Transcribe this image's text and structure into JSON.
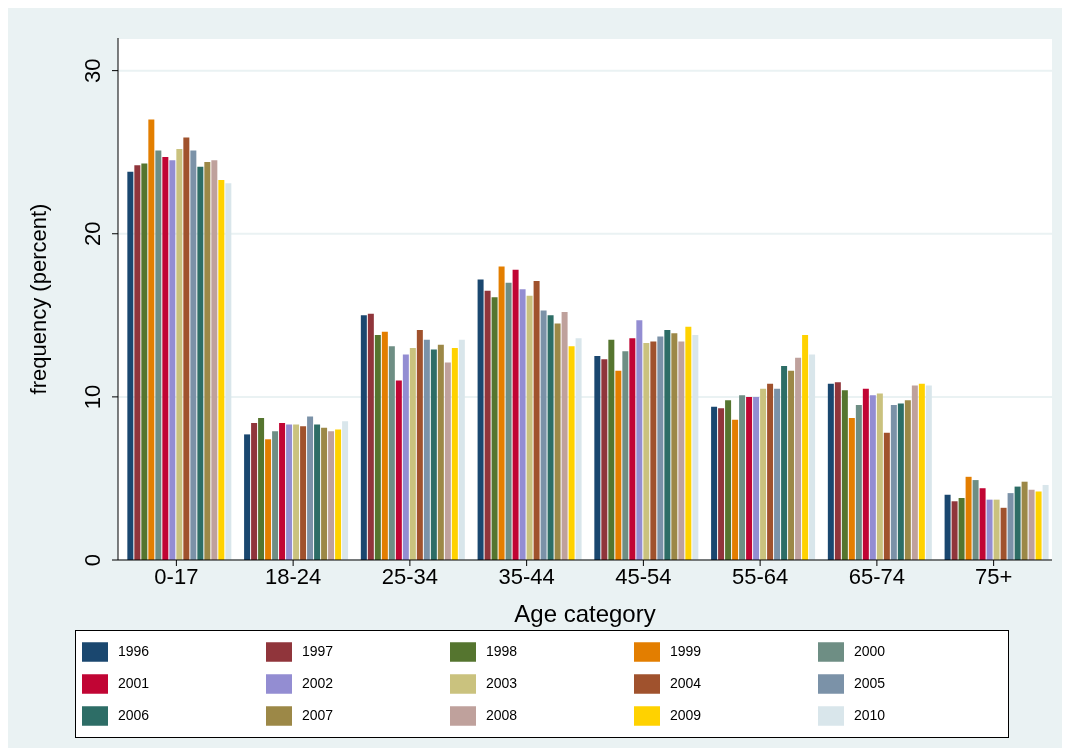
{
  "chart_data": {
    "type": "bar",
    "xlabel": "Age category",
    "ylabel": "frequency (percent)",
    "categories": [
      "0-17",
      "18-24",
      "25-34",
      "35-44",
      "45-54",
      "55-64",
      "65-74",
      "75+"
    ],
    "ylim": [
      0,
      32
    ],
    "yticks": [
      0,
      10,
      20,
      30
    ],
    "grid": "y",
    "legend": "bottom",
    "series": [
      {
        "name": "1996",
        "color": "#1a476f",
        "values": [
          23.8,
          7.7,
          15.0,
          17.2,
          12.5,
          9.4,
          10.8,
          4.0
        ]
      },
      {
        "name": "1997",
        "color": "#90353b",
        "values": [
          24.2,
          8.4,
          15.1,
          16.5,
          12.3,
          9.3,
          10.9,
          3.6
        ]
      },
      {
        "name": "1998",
        "color": "#55752f",
        "values": [
          24.3,
          8.7,
          13.8,
          16.1,
          13.5,
          9.8,
          10.4,
          3.8
        ]
      },
      {
        "name": "1999",
        "color": "#e37e00",
        "values": [
          27.0,
          7.4,
          14.0,
          18.0,
          11.6,
          8.6,
          8.7,
          5.1
        ]
      },
      {
        "name": "2000",
        "color": "#6e8e84",
        "values": [
          25.1,
          7.9,
          13.1,
          17.0,
          12.8,
          10.1,
          9.5,
          4.9
        ]
      },
      {
        "name": "2001",
        "color": "#c10534",
        "values": [
          24.7,
          8.4,
          11.0,
          17.8,
          13.6,
          10.0,
          10.5,
          4.4
        ]
      },
      {
        "name": "2002",
        "color": "#938dd2",
        "values": [
          24.5,
          8.3,
          12.6,
          16.6,
          14.7,
          10.0,
          10.1,
          3.7
        ]
      },
      {
        "name": "2003",
        "color": "#cac27e",
        "values": [
          25.2,
          8.3,
          13.0,
          16.2,
          13.3,
          10.5,
          10.2,
          3.7
        ]
      },
      {
        "name": "2004",
        "color": "#a0522d",
        "values": [
          25.9,
          8.2,
          14.1,
          17.1,
          13.4,
          10.8,
          7.8,
          3.2
        ]
      },
      {
        "name": "2005",
        "color": "#7b92a8",
        "values": [
          25.1,
          8.8,
          13.5,
          15.3,
          13.7,
          10.5,
          9.5,
          4.1
        ]
      },
      {
        "name": "2006",
        "color": "#2d6d66",
        "values": [
          24.1,
          8.3,
          12.9,
          15.0,
          14.1,
          11.9,
          9.6,
          4.5
        ]
      },
      {
        "name": "2007",
        "color": "#9c8847",
        "values": [
          24.4,
          8.1,
          13.2,
          14.5,
          13.9,
          11.6,
          9.8,
          4.8
        ]
      },
      {
        "name": "2008",
        "color": "#bfa19c",
        "values": [
          24.5,
          7.9,
          12.1,
          15.2,
          13.4,
          12.4,
          10.7,
          4.3
        ]
      },
      {
        "name": "2009",
        "color": "#ffd200",
        "values": [
          23.3,
          8.0,
          13.0,
          13.1,
          14.3,
          13.8,
          10.8,
          4.2
        ]
      },
      {
        "name": "2010",
        "color": "#d9e6eb",
        "values": [
          23.1,
          8.5,
          13.5,
          13.6,
          13.8,
          12.6,
          10.7,
          4.6
        ]
      }
    ]
  }
}
